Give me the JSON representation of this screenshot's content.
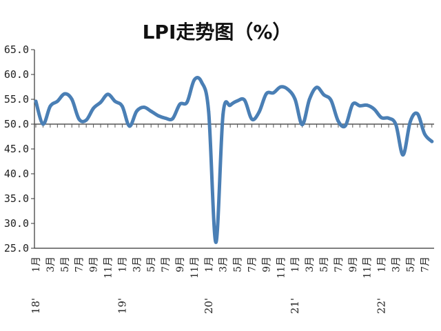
{
  "chart_data": {
    "type": "line",
    "title": "LPI走势图（%）",
    "xlabel": "",
    "ylabel": "",
    "ylim": [
      25,
      65
    ],
    "yticks": [
      "65.0",
      "60.0",
      "55.0",
      "50.0",
      "45.0",
      "40.0",
      "35.0",
      "30.0",
      "25.0"
    ],
    "reference_line": 50,
    "line_color": "#4a7fb5",
    "x_ticks": [
      {
        "index": 0,
        "label": "1月"
      },
      {
        "index": 2,
        "label": "3月"
      },
      {
        "index": 4,
        "label": "5月"
      },
      {
        "index": 6,
        "label": "7月"
      },
      {
        "index": 8,
        "label": "9月"
      },
      {
        "index": 10,
        "label": "11月"
      },
      {
        "index": 12,
        "label": "1月"
      },
      {
        "index": 14,
        "label": "3月"
      },
      {
        "index": 16,
        "label": "5月"
      },
      {
        "index": 18,
        "label": "7月"
      },
      {
        "index": 20,
        "label": "9月"
      },
      {
        "index": 22,
        "label": "11月"
      },
      {
        "index": 24,
        "label": "1月"
      },
      {
        "index": 26,
        "label": "3月"
      },
      {
        "index": 28,
        "label": "5月"
      },
      {
        "index": 30,
        "label": "7月"
      },
      {
        "index": 32,
        "label": "9月"
      },
      {
        "index": 34,
        "label": "11月"
      },
      {
        "index": 36,
        "label": "1月"
      },
      {
        "index": 38,
        "label": "3月"
      },
      {
        "index": 40,
        "label": "5月"
      },
      {
        "index": 42,
        "label": "7月"
      },
      {
        "index": 44,
        "label": "9月"
      },
      {
        "index": 46,
        "label": "11月"
      },
      {
        "index": 48,
        "label": "1月"
      },
      {
        "index": 50,
        "label": "3月"
      },
      {
        "index": 52,
        "label": "5月"
      },
      {
        "index": 54,
        "label": "7月"
      }
    ],
    "years": [
      {
        "index": 0,
        "label": "18'"
      },
      {
        "index": 12,
        "label": "19'"
      },
      {
        "index": 24,
        "label": "20'"
      },
      {
        "index": 36,
        "label": "21'"
      },
      {
        "index": 48,
        "label": "22'"
      }
    ],
    "x": [
      "2018-01",
      "2018-02",
      "2018-03",
      "2018-04",
      "2018-05",
      "2018-06",
      "2018-07",
      "2018-08",
      "2018-09",
      "2018-10",
      "2018-11",
      "2018-12",
      "2019-01",
      "2019-02",
      "2019-03",
      "2019-04",
      "2019-05",
      "2019-06",
      "2019-07",
      "2019-08",
      "2019-09",
      "2019-10",
      "2019-11",
      "2019-12",
      "2020-01",
      "2020-02",
      "2020-03",
      "2020-04",
      "2020-05",
      "2020-06",
      "2020-07",
      "2020-08",
      "2020-09",
      "2020-10",
      "2020-11",
      "2020-12",
      "2021-01",
      "2021-02",
      "2021-03",
      "2021-04",
      "2021-05",
      "2021-06",
      "2021-07",
      "2021-08",
      "2021-09",
      "2021-10",
      "2021-11",
      "2021-12",
      "2022-01",
      "2022-02",
      "2022-03",
      "2022-04",
      "2022-05",
      "2022-06",
      "2022-07",
      "2022-08"
    ],
    "series": [
      {
        "values": [
          54.6,
          50.0,
          53.6,
          54.6,
          56.1,
          55.0,
          51.0,
          50.8,
          53.2,
          54.4,
          56.0,
          54.6,
          53.6,
          49.6,
          52.6,
          53.4,
          52.6,
          51.7,
          51.2,
          51.1,
          54.0,
          54.4,
          58.9,
          58.5,
          52.5,
          26.2,
          52.0,
          53.8,
          54.7,
          54.8,
          51.0,
          52.4,
          56.1,
          56.3,
          57.5,
          57.0,
          55.0,
          49.9,
          55.0,
          57.4,
          55.9,
          54.8,
          50.6,
          49.7,
          54.0,
          53.7,
          53.8,
          53.0,
          51.3,
          51.2,
          49.9,
          43.8,
          50.5,
          52.1,
          48.0,
          46.5
        ]
      }
    ]
  }
}
